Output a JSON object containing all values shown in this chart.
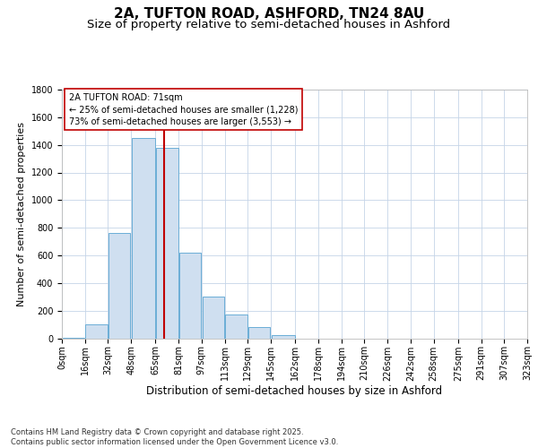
{
  "title_line1": "2A, TUFTON ROAD, ASHFORD, TN24 8AU",
  "title_line2": "Size of property relative to semi-detached houses in Ashford",
  "xlabel": "Distribution of semi-detached houses by size in Ashford",
  "ylabel": "Number of semi-detached properties",
  "footnote1": "Contains HM Land Registry data © Crown copyright and database right 2025.",
  "footnote2": "Contains public sector information licensed under the Open Government Licence v3.0.",
  "annotation_line1": "2A TUFTON ROAD: 71sqm",
  "annotation_line2": "← 25% of semi-detached houses are smaller (1,228)",
  "annotation_line3": "73% of semi-detached houses are larger (3,553) →",
  "property_size": 71,
  "bin_edges": [
    0,
    16,
    32,
    48,
    65,
    81,
    97,
    113,
    129,
    145,
    162,
    178,
    194,
    210,
    226,
    242,
    258,
    275,
    291,
    307,
    323
  ],
  "bin_labels": [
    "0sqm",
    "16sqm",
    "32sqm",
    "48sqm",
    "65sqm",
    "81sqm",
    "97sqm",
    "113sqm",
    "129sqm",
    "145sqm",
    "162sqm",
    "178sqm",
    "194sqm",
    "210sqm",
    "226sqm",
    "242sqm",
    "258sqm",
    "275sqm",
    "291sqm",
    "307sqm",
    "323sqm"
  ],
  "counts": [
    5,
    100,
    760,
    1450,
    1380,
    620,
    300,
    175,
    80,
    25,
    0,
    0,
    0,
    0,
    0,
    0,
    0,
    0,
    0,
    0
  ],
  "bar_facecolor": "#cfdff0",
  "bar_edgecolor": "#6baed6",
  "vline_color": "#c00000",
  "box_edgecolor": "#c00000",
  "grid_color": "#c5d5e8",
  "ylim": [
    0,
    1800
  ],
  "yticks": [
    0,
    200,
    400,
    600,
    800,
    1000,
    1200,
    1400,
    1600,
    1800
  ],
  "bg_color": "#ffffff",
  "title_fontsize": 11,
  "subtitle_fontsize": 9.5,
  "ylabel_fontsize": 8,
  "xlabel_fontsize": 8.5,
  "tick_fontsize": 7,
  "annot_fontsize": 7,
  "footnote_fontsize": 6
}
